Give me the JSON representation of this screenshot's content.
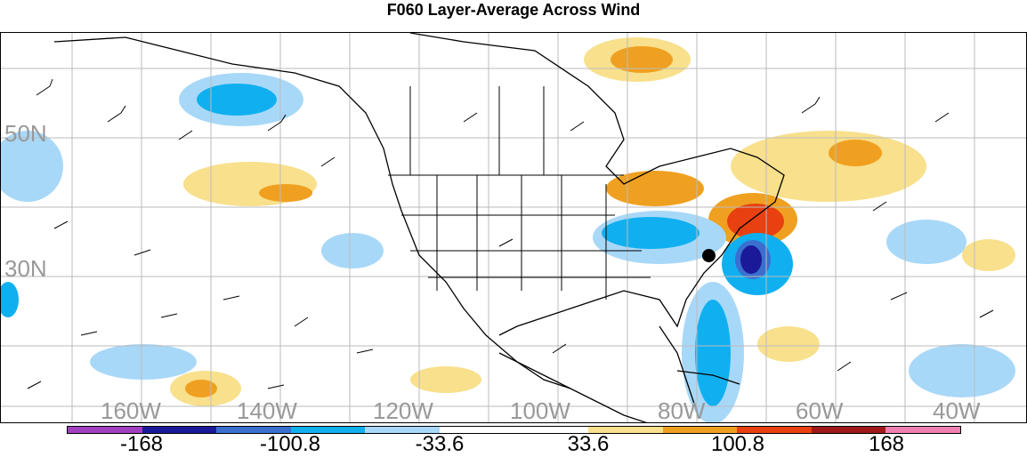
{
  "title": "F060 Layer-Average Across Wind",
  "lat_labels": [
    "50N",
    "30N"
  ],
  "lon_labels": [
    "160W",
    "140W",
    "120W",
    "100W",
    "80W",
    "60W",
    "40W"
  ],
  "colorbar": {
    "colors": [
      "#a040c0",
      "#1a1a99",
      "#3a6fd0",
      "#10b0f0",
      "#a8d8f8",
      "#ffffff",
      "#ffffff",
      "#f8e08c",
      "#f0a020",
      "#e84010",
      "#a01818",
      "#f080b0"
    ],
    "labels": [
      "-168",
      "-100.8",
      "-33.6",
      "33.6",
      "100.8",
      "168"
    ]
  }
}
